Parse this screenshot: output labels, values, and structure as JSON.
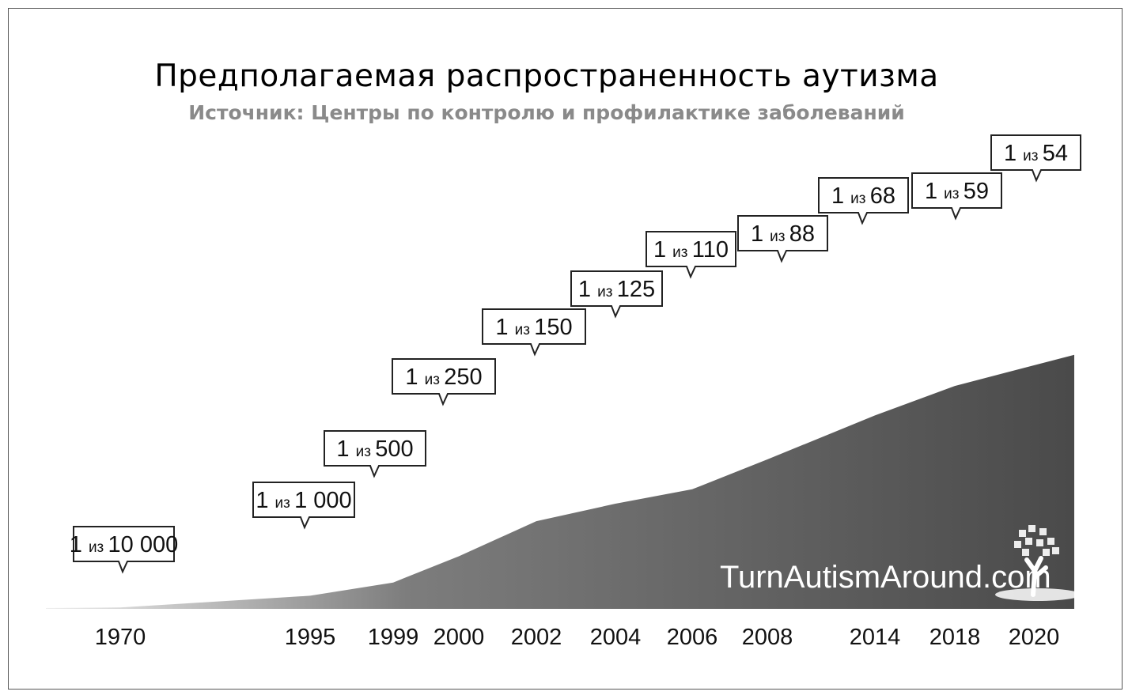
{
  "title": "Предполагаемая распространенность аутизма",
  "subtitle": "Источник: Центры по контролю и профилактике заболеваний",
  "watermark": "TurnAutismAround.com",
  "colors": {
    "area_light": "#e6e6e6",
    "area_mid": "#7a7a7a",
    "area_dark": "#4a4a4a",
    "border": "#555555"
  },
  "chart_data": {
    "type": "area",
    "x": [
      "1970",
      "1995",
      "1999",
      "2000",
      "2002",
      "2004",
      "2006",
      "2008",
      "2014",
      "2018",
      "2020"
    ],
    "labels": [
      "1 из 10 000",
      "1 из 1 000",
      "1 из 500",
      "1 из 250",
      "1 из 150",
      "1 из 125",
      "1 из 110",
      "1 из 88",
      "1 из 68",
      "1 из 59",
      "1 из 54"
    ],
    "ratio_denominators": [
      10000,
      1000,
      500,
      250,
      150,
      125,
      110,
      88,
      68,
      59,
      54
    ],
    "label_prefix": "1",
    "label_joiner": "из",
    "grid": false,
    "legend": "none"
  }
}
